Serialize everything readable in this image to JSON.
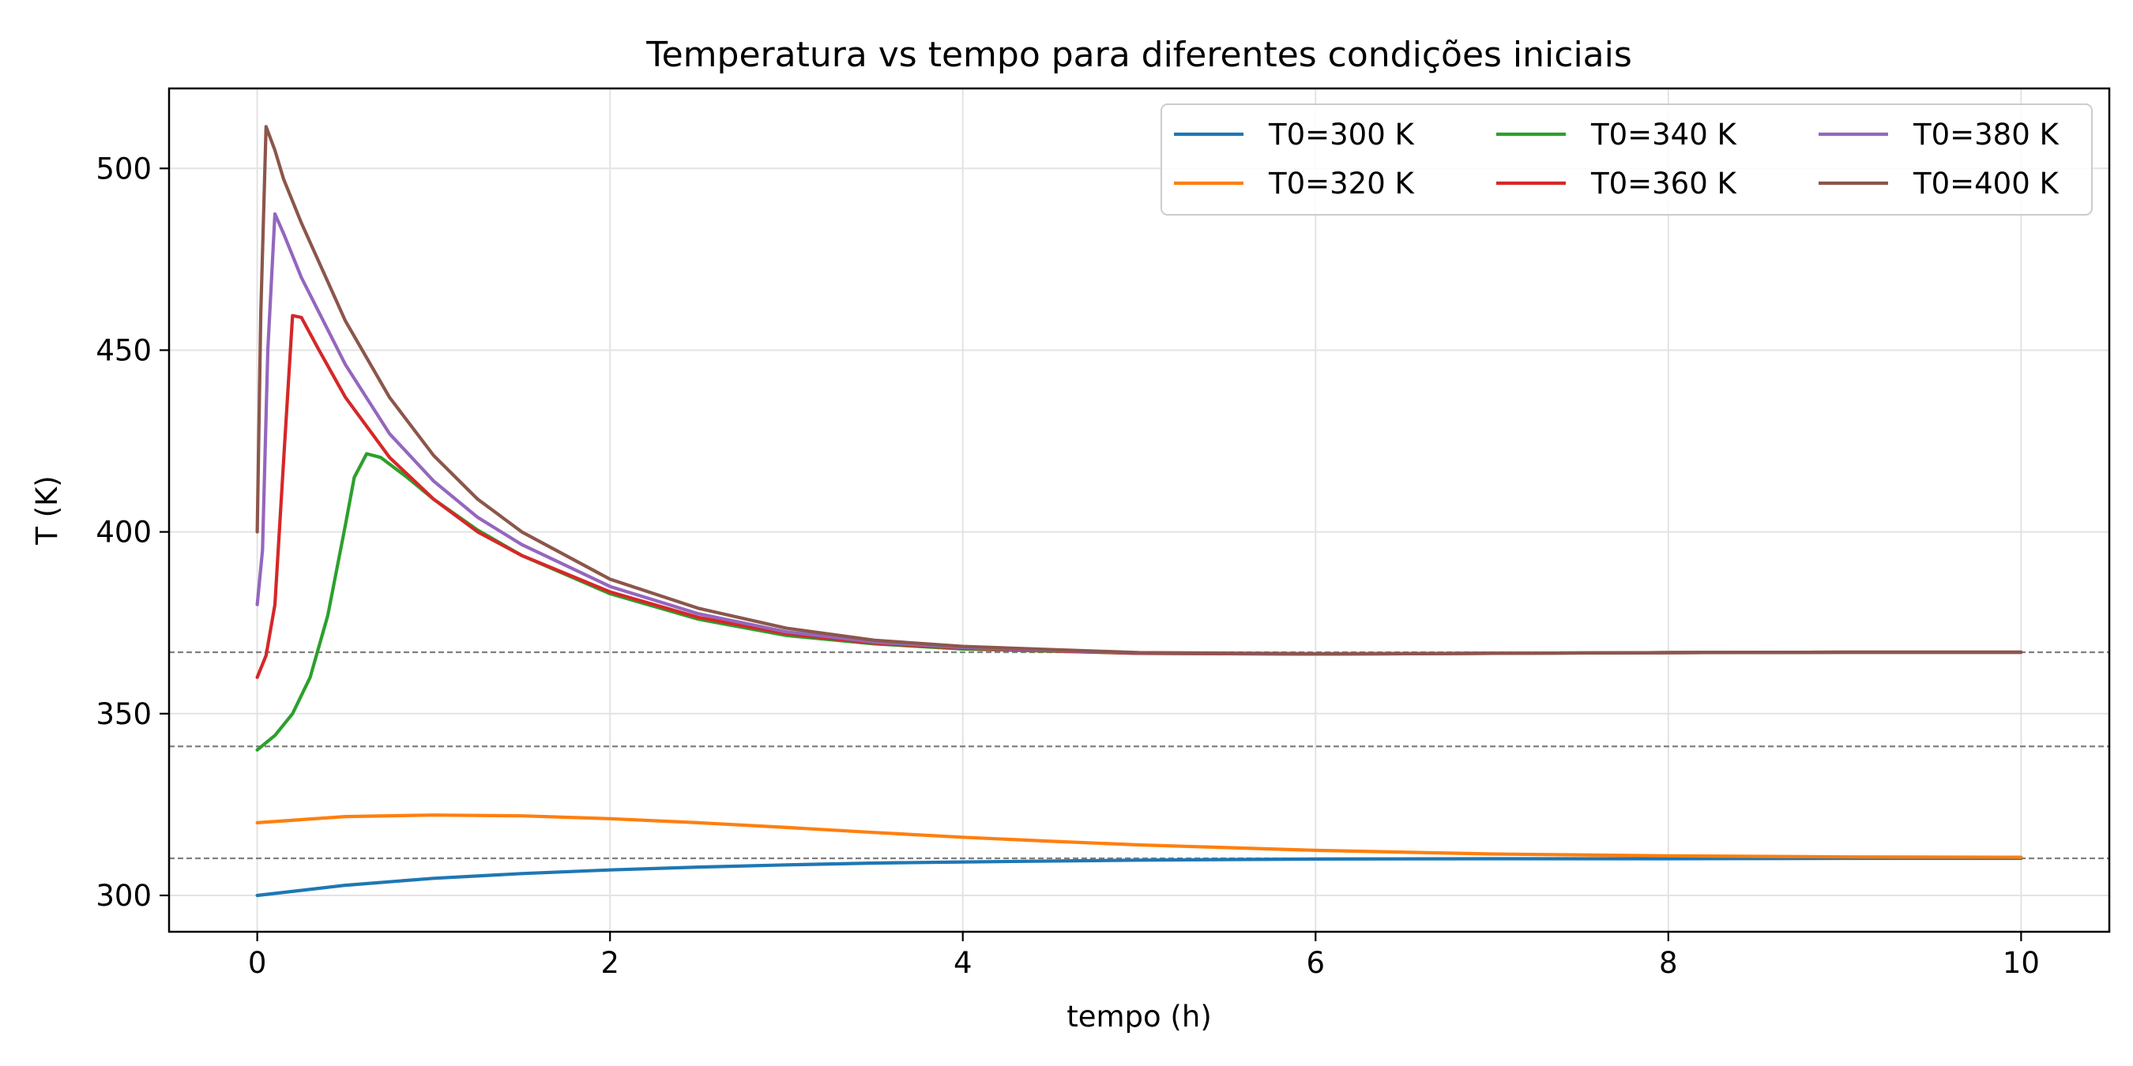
{
  "chart_data": {
    "type": "line",
    "title": "Temperatura vs tempo para diferentes condições iniciais",
    "xlabel": "tempo (h)",
    "ylabel": "T (K)",
    "xlim": [
      -0.5,
      10.5
    ],
    "ylim": [
      290,
      522
    ],
    "xticks": [
      0,
      2,
      4,
      6,
      8,
      10
    ],
    "yticks": [
      300,
      350,
      400,
      450,
      500
    ],
    "grid": true,
    "legend": {
      "placement": "top-right",
      "columns": 3
    },
    "reference_lines": [
      310.2,
      341.0,
      366.9
    ],
    "series": [
      {
        "name": "T0=300 K",
        "color": "#1f77b4",
        "x": [
          0,
          0.5,
          1,
          1.5,
          2,
          2.5,
          3,
          3.5,
          4,
          5,
          6,
          7,
          8,
          9,
          10
        ],
        "y": [
          300,
          302.8,
          304.7,
          306.0,
          307.0,
          307.8,
          308.4,
          308.9,
          309.2,
          309.7,
          310.0,
          310.1,
          310.1,
          310.2,
          310.2
        ]
      },
      {
        "name": "T0=320 K",
        "color": "#ff7f0e",
        "x": [
          0,
          0.5,
          1,
          1.5,
          2,
          2.5,
          3,
          3.5,
          4,
          4.5,
          5,
          6,
          7,
          8,
          9,
          10
        ],
        "y": [
          320,
          321.7,
          322.1,
          321.9,
          321.1,
          320.0,
          318.7,
          317.3,
          316.0,
          314.9,
          313.9,
          312.4,
          311.4,
          310.9,
          310.6,
          310.5
        ]
      },
      {
        "name": "T0=340 K",
        "color": "#2ca02c",
        "x": [
          0,
          0.1,
          0.2,
          0.3,
          0.4,
          0.5,
          0.55,
          0.62,
          0.7,
          0.85,
          1,
          1.25,
          1.5,
          2,
          2.5,
          3,
          3.5,
          4,
          5,
          6,
          7,
          8,
          9,
          10
        ],
        "y": [
          340,
          344,
          350,
          360,
          377,
          402,
          415,
          421.5,
          420.5,
          415,
          409,
          400.5,
          393.5,
          383,
          376,
          371.5,
          369.2,
          367.8,
          366.6,
          366.4,
          366.6,
          366.8,
          366.9,
          366.9
        ]
      },
      {
        "name": "T0=360 K",
        "color": "#d62728",
        "x": [
          0,
          0.05,
          0.1,
          0.15,
          0.2,
          0.25,
          0.35,
          0.5,
          0.75,
          1,
          1.25,
          1.5,
          2,
          2.5,
          3,
          3.5,
          4,
          5,
          6,
          7,
          8,
          9,
          10
        ],
        "y": [
          360,
          366,
          380,
          420,
          459.5,
          459,
          450,
          437,
          420.5,
          409,
          400,
          393.5,
          383.5,
          376.5,
          372,
          369.4,
          368,
          366.6,
          366.4,
          366.6,
          366.8,
          366.9,
          366.9
        ]
      },
      {
        "name": "T0=380 K",
        "color": "#9467bd",
        "x": [
          0,
          0.03,
          0.06,
          0.1,
          0.15,
          0.25,
          0.5,
          0.75,
          1,
          1.25,
          1.5,
          2,
          2.5,
          3,
          3.5,
          4,
          5,
          6,
          7,
          8,
          9,
          10
        ],
        "y": [
          380,
          395,
          450,
          487.5,
          482,
          470,
          446,
          427,
          414,
          404,
          396.5,
          385,
          377.5,
          372.5,
          369.7,
          368.2,
          366.7,
          366.4,
          366.6,
          366.8,
          366.9,
          366.9
        ]
      },
      {
        "name": "T0=400 K",
        "color": "#8c564b",
        "x": [
          0,
          0.02,
          0.05,
          0.1,
          0.15,
          0.25,
          0.5,
          0.75,
          1,
          1.25,
          1.5,
          2,
          2.5,
          3,
          3.5,
          4,
          5,
          6,
          7,
          8,
          9,
          10
        ],
        "y": [
          400,
          460,
          511.5,
          505,
          497,
          485,
          458,
          437,
          421,
          409,
          400,
          387,
          379,
          373.5,
          370.2,
          368.5,
          366.8,
          366.5,
          366.6,
          366.8,
          366.9,
          366.9
        ]
      }
    ]
  }
}
